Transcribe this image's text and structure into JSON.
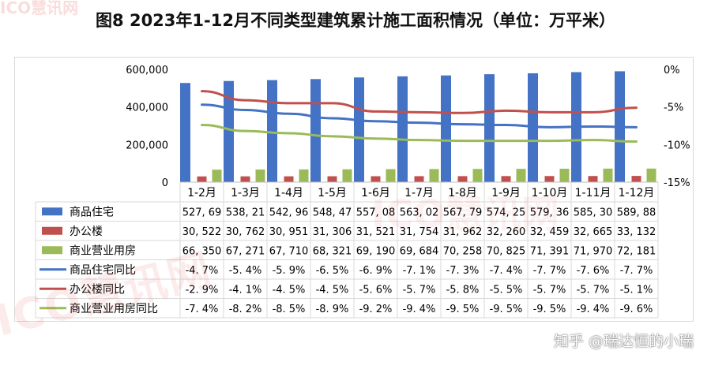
{
  "title": "图8  2023年1-12月不同类型建筑累计施工面积情况（单位：万平米）",
  "watermark": "ICO慧讯网",
  "attribution": "知乎 @瑞达恒的小瑞",
  "colors": {
    "residential": "#4472c4",
    "office": "#c0504d",
    "commercial": "#9bbb59",
    "grid": "#d9d9d9",
    "axis_text": "#000000"
  },
  "chart_data": {
    "type": "bar",
    "title": "图8  2023年1-12月不同类型建筑累计施工面积情况（单位：万平米）",
    "categories": [
      "1-2月",
      "1-3月",
      "1-4月",
      "1-5月",
      "1-6月",
      "1-7月",
      "1-8月",
      "1-9月",
      "1-10月",
      "1-11月",
      "1-12月"
    ],
    "y_left": {
      "ylim": [
        0,
        600000
      ],
      "ticks": [
        "0",
        "200,000",
        "400,000",
        "600,000"
      ],
      "tick_values": [
        0,
        200000,
        400000,
        600000
      ]
    },
    "y_right": {
      "ylim": [
        -15,
        0
      ],
      "ticks": [
        "0%",
        "-5%",
        "-10%",
        "-15%"
      ],
      "tick_values": [
        0,
        -5,
        -10,
        -15
      ]
    },
    "grid": false,
    "legend": "data-table",
    "bar_series": [
      {
        "name": "商品住宅",
        "color": "#4472c4",
        "values": [
          527690,
          538210,
          542960,
          548470,
          557080,
          563020,
          567790,
          574250,
          579360,
          585300,
          589880
        ],
        "labels": [
          "527, 69",
          "538, 21",
          "542, 96",
          "548, 47",
          "557, 08",
          "563, 02",
          "567, 79",
          "574, 25",
          "579, 36",
          "585, 30",
          "589, 88"
        ]
      },
      {
        "name": "办公楼",
        "color": "#c0504d",
        "values": [
          30522,
          30762,
          30951,
          31306,
          31521,
          31754,
          31962,
          32260,
          32459,
          32665,
          33132
        ],
        "labels": [
          "30, 522",
          "30, 762",
          "30, 951",
          "31, 306",
          "31, 521",
          "31, 754",
          "31, 962",
          "32, 260",
          "32, 459",
          "32, 665",
          "33, 132"
        ]
      },
      {
        "name": "商业营业用房",
        "color": "#9bbb59",
        "values": [
          66350,
          67271,
          67710,
          68321,
          69190,
          69684,
          70258,
          70825,
          71391,
          71970,
          72181
        ],
        "labels": [
          "66, 350",
          "67, 271",
          "67, 710",
          "68, 321",
          "69, 190",
          "69, 684",
          "70, 258",
          "70, 825",
          "71, 391",
          "71, 970",
          "72, 181"
        ]
      }
    ],
    "line_series": [
      {
        "name": "商品住宅同比",
        "color": "#4472c4",
        "values": [
          -4.7,
          -5.4,
          -5.9,
          -6.5,
          -6.9,
          -7.1,
          -7.3,
          -7.4,
          -7.7,
          -7.6,
          -7.7
        ],
        "labels": [
          "-4. 7%",
          "-5. 4%",
          "-5. 9%",
          "-6. 5%",
          "-6. 9%",
          "-7. 1%",
          "-7. 3%",
          "-7. 4%",
          "-7. 7%",
          "-7. 6%",
          "-7. 7%"
        ]
      },
      {
        "name": "办公楼同比",
        "color": "#c0504d",
        "values": [
          -2.9,
          -4.1,
          -4.5,
          -4.5,
          -5.6,
          -5.7,
          -5.8,
          -5.5,
          -5.7,
          -5.7,
          -5.1
        ],
        "labels": [
          "-2. 9%",
          "-4. 1%",
          "-4. 5%",
          "-4. 5%",
          "-5. 6%",
          "-5. 7%",
          "-5. 8%",
          "-5. 5%",
          "-5. 7%",
          "-5. 7%",
          "-5. 1%"
        ]
      },
      {
        "name": "商业营业用房同比",
        "color": "#9bbb59",
        "values": [
          -7.4,
          -8.2,
          -8.5,
          -8.9,
          -9.2,
          -9.4,
          -9.5,
          -9.5,
          -9.5,
          -9.4,
          -9.6
        ],
        "labels": [
          "-7. 4%",
          "-8. 2%",
          "-8. 5%",
          "-8. 9%",
          "-9. 2%",
          "-9. 4%",
          "-9. 5%",
          "-9. 5%",
          "-9. 5%",
          "-9. 4%",
          "-9. 6%"
        ]
      }
    ]
  }
}
